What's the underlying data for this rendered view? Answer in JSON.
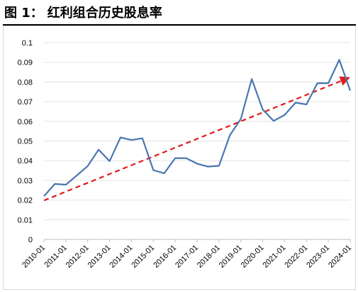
{
  "figure": {
    "label": "图 1：",
    "title": "红利组合历史股息率"
  },
  "chart_data": {
    "type": "line",
    "title": "",
    "xlabel": "",
    "ylabel": "",
    "ylim": [
      0,
      0.1
    ],
    "yticks": [
      "0.1",
      "0.09",
      "0.08",
      "0.07",
      "0.06",
      "0.05",
      "0.04",
      "0.03",
      "0.02",
      "0.01",
      "0"
    ],
    "ytick_values": [
      0.1,
      0.09,
      0.08,
      0.07,
      0.06,
      0.05,
      0.04,
      0.03,
      0.02,
      0.01,
      0
    ],
    "xticks": [
      "2010-01",
      "2011-01",
      "2012-01",
      "2013-01",
      "2014-01",
      "2015-01",
      "2016-01",
      "2017-01",
      "2018-01",
      "2019-01",
      "2020-01",
      "2021-01",
      "2022-01",
      "2023-01",
      "2024-01"
    ],
    "grid": "horizontal",
    "legend": "none",
    "series": [
      {
        "color": "#4a77b0",
        "x": [
          "2010-01",
          "2010-07",
          "2011-01",
          "2011-07",
          "2012-01",
          "2012-07",
          "2013-01",
          "2013-07",
          "2014-01",
          "2014-07",
          "2015-01",
          "2015-07",
          "2016-01",
          "2016-07",
          "2017-01",
          "2017-07",
          "2018-01",
          "2018-07",
          "2019-01",
          "2019-07",
          "2020-01",
          "2020-07",
          "2021-01",
          "2021-07",
          "2022-01",
          "2022-07",
          "2023-01",
          "2023-07",
          "2024-01"
        ],
        "values": [
          0.022,
          0.0282,
          0.0278,
          0.0325,
          0.0373,
          0.0456,
          0.0398,
          0.0518,
          0.0505,
          0.0514,
          0.0352,
          0.0336,
          0.0413,
          0.0413,
          0.0385,
          0.037,
          0.0374,
          0.053,
          0.0612,
          0.0815,
          0.066,
          0.0602,
          0.0632,
          0.0695,
          0.0686,
          0.0794,
          0.0794,
          0.0913,
          0.0756
        ]
      }
    ],
    "trend": {
      "color": "#e31a1c",
      "style": "dashed",
      "from": {
        "x": "2010-01",
        "y": 0.0198
      },
      "to": {
        "x": "2024-01",
        "y": 0.0824
      },
      "arrow": true
    }
  }
}
